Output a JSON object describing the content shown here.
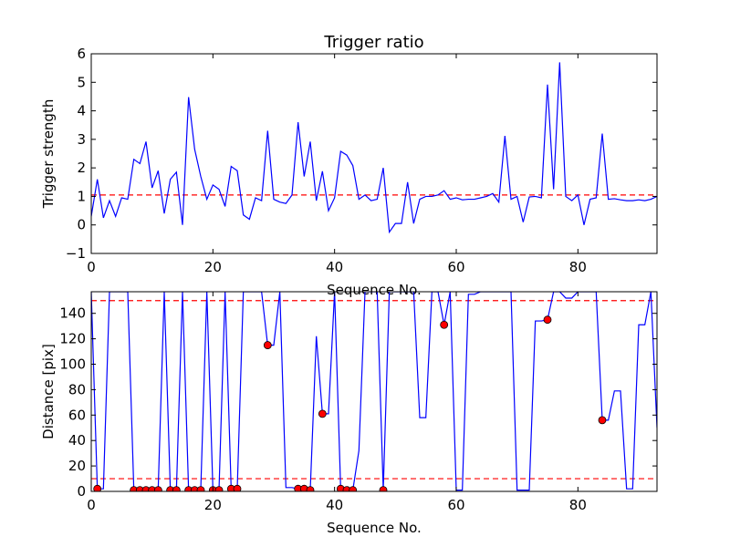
{
  "chart_data": [
    {
      "type": "line",
      "title": "Trigger ratio",
      "xlabel": "Sequence No.",
      "ylabel": "Trigger strength",
      "xlim": [
        0,
        93
      ],
      "ylim": [
        -1,
        6
      ],
      "xticks": [
        0,
        20,
        40,
        60,
        80
      ],
      "yticks": [
        -1,
        0,
        1,
        2,
        3,
        4,
        5,
        6
      ],
      "grid": false,
      "threshold": {
        "value": 1.05,
        "color": "#ff0000",
        "style": "dashed"
      },
      "series": [
        {
          "color": "#0000ff",
          "x": [
            0,
            1,
            2,
            3,
            4,
            5,
            6,
            7,
            8,
            9,
            10,
            11,
            12,
            13,
            14,
            15,
            16,
            17,
            18,
            19,
            20,
            21,
            22,
            23,
            24,
            25,
            26,
            27,
            28,
            29,
            30,
            31,
            32,
            33,
            34,
            35,
            36,
            37,
            38,
            39,
            40,
            41,
            42,
            43,
            44,
            45,
            46,
            47,
            48,
            49,
            50,
            51,
            52,
            53,
            54,
            55,
            56,
            57,
            58,
            59,
            60,
            61,
            62,
            63,
            64,
            65,
            66,
            67,
            68,
            69,
            70,
            71,
            72,
            73,
            74,
            75,
            76,
            77,
            78,
            79,
            80,
            81,
            82,
            83,
            84,
            85,
            86,
            87,
            88,
            89,
            90,
            91,
            92,
            93
          ],
          "y": [
            0.3,
            1.6,
            0.25,
            0.85,
            0.3,
            0.95,
            0.9,
            2.3,
            2.15,
            2.92,
            1.3,
            1.9,
            0.4,
            1.6,
            1.85,
            0.0,
            4.48,
            2.65,
            1.7,
            0.9,
            1.4,
            1.25,
            0.65,
            2.05,
            1.9,
            0.35,
            0.2,
            0.95,
            0.85,
            3.3,
            0.9,
            0.8,
            0.75,
            1.05,
            3.6,
            1.7,
            2.92,
            0.85,
            1.88,
            0.5,
            0.95,
            2.58,
            2.45,
            2.08,
            0.9,
            1.05,
            0.85,
            0.9,
            2.0,
            -0.25,
            0.05,
            0.05,
            1.5,
            0.05,
            0.9,
            1.0,
            1.0,
            1.05,
            1.2,
            0.9,
            0.95,
            0.88,
            0.9,
            0.9,
            0.95,
            1.0,
            1.1,
            0.8,
            3.12,
            0.9,
            1.0,
            0.1,
            0.98,
            1.0,
            0.95,
            4.92,
            1.25,
            5.7,
            1.0,
            0.85,
            1.05,
            0.0,
            0.9,
            0.95,
            3.2,
            0.9,
            0.92,
            0.88,
            0.85,
            0.85,
            0.88,
            0.85,
            0.9,
            1.0
          ]
        }
      ]
    },
    {
      "type": "line",
      "title": "",
      "xlabel": "Sequence No.",
      "ylabel": "Distance [pix]",
      "xlim": [
        0,
        93
      ],
      "ylim": [
        0,
        157
      ],
      "xticks": [
        0,
        20,
        40,
        60,
        80
      ],
      "yticks": [
        0,
        20,
        40,
        60,
        80,
        100,
        120,
        140
      ],
      "grid": false,
      "thresholds": [
        {
          "value": 150,
          "color": "#ff0000",
          "style": "dashed"
        },
        {
          "value": 10,
          "color": "#ff0000",
          "style": "dashed"
        }
      ],
      "series": [
        {
          "color": "#0000ff",
          "x": [
            0,
            1,
            2,
            3,
            4,
            5,
            6,
            7,
            8,
            9,
            10,
            11,
            12,
            13,
            14,
            15,
            16,
            17,
            18,
            19,
            20,
            21,
            22,
            23,
            24,
            25,
            26,
            27,
            28,
            29,
            30,
            31,
            32,
            33,
            34,
            35,
            36,
            37,
            38,
            39,
            40,
            41,
            42,
            43,
            44,
            45,
            46,
            47,
            48,
            49,
            50,
            51,
            52,
            53,
            54,
            55,
            56,
            57,
            58,
            59,
            60,
            61,
            62,
            63,
            64,
            65,
            66,
            67,
            68,
            69,
            70,
            71,
            72,
            73,
            74,
            75,
            76,
            77,
            78,
            79,
            80,
            81,
            82,
            83,
            84,
            85,
            86,
            87,
            88,
            89,
            90,
            91,
            92,
            93
          ],
          "y": [
            157,
            2,
            2,
            157,
            157,
            157,
            157,
            1,
            1,
            1,
            1,
            1,
            157,
            1,
            1,
            157,
            1,
            1,
            1,
            157,
            1,
            1,
            157,
            2,
            2,
            157,
            157,
            157,
            157,
            115,
            115,
            157,
            3,
            3,
            2,
            2,
            1,
            122,
            61,
            61,
            157,
            2,
            1,
            1,
            32,
            157,
            157,
            157,
            1,
            157,
            157,
            157,
            157,
            157,
            58,
            58,
            157,
            157,
            131,
            157,
            1,
            1,
            155,
            155,
            157,
            157,
            157,
            157,
            157,
            157,
            1,
            1,
            1,
            134,
            134,
            135,
            157,
            157,
            152,
            152,
            157,
            157,
            157,
            157,
            56,
            56,
            79,
            79,
            2,
            2,
            131,
            131,
            157,
            50
          ]
        },
        {
          "name": "",
          "color": "#ff0000",
          "marker": "circle",
          "x": [
            1,
            7,
            8,
            9,
            10,
            11,
            13,
            14,
            16,
            17,
            18,
            20,
            21,
            23,
            24,
            29,
            34,
            35,
            36,
            38,
            41,
            42,
            43,
            48,
            58,
            75,
            84
          ],
          "y": [
            2,
            1,
            1,
            1,
            1,
            1,
            1,
            1,
            1,
            1,
            1,
            1,
            1,
            2,
            2,
            115,
            2,
            2,
            1,
            61,
            2,
            1,
            1,
            1,
            131,
            135,
            56
          ]
        }
      ]
    }
  ]
}
